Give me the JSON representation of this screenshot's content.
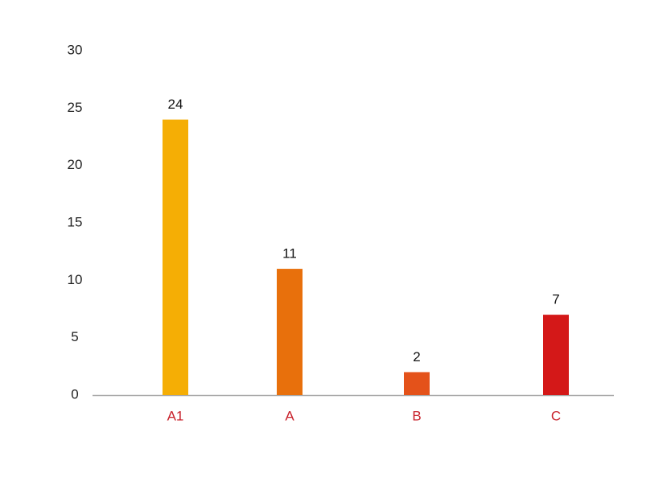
{
  "chart_data": {
    "type": "bar",
    "categories": [
      "A1",
      "A",
      "B",
      "C"
    ],
    "values": [
      24,
      11,
      2,
      7
    ],
    "colors": [
      "#f5ae05",
      "#e8700c",
      "#e4521a",
      "#d41818"
    ],
    "ylim": [
      0,
      30
    ],
    "yticks": [
      0,
      5,
      10,
      15,
      20,
      25,
      30
    ],
    "grid": false
  }
}
